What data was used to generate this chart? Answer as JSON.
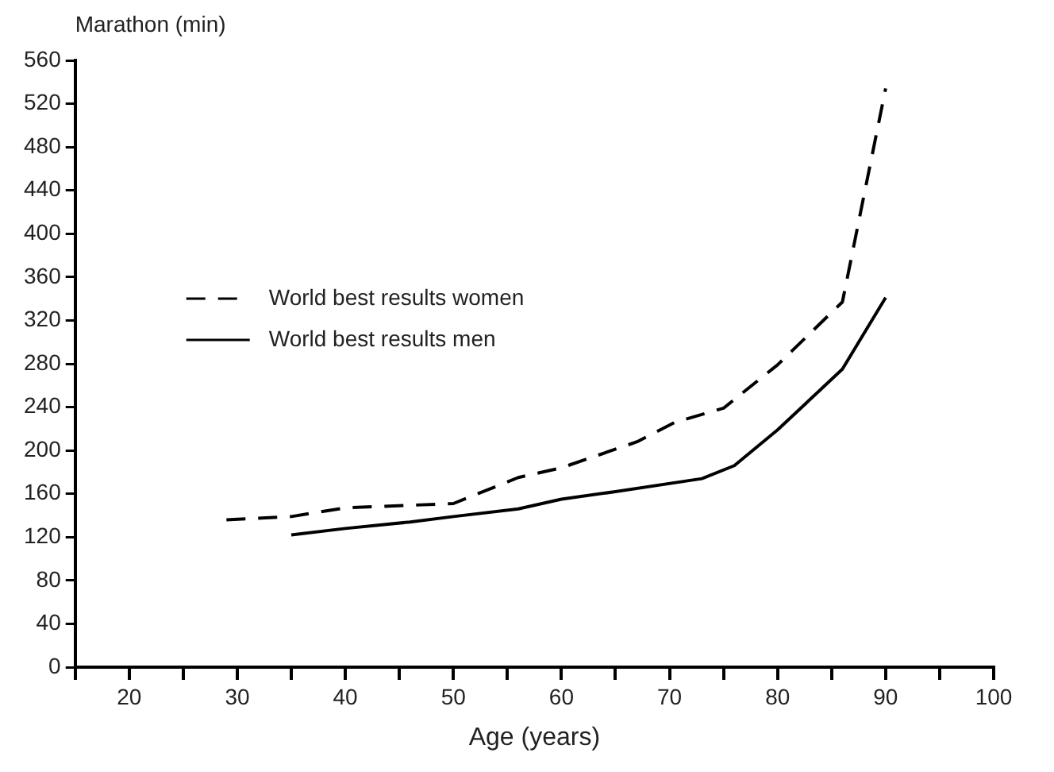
{
  "chart_data": {
    "type": "line",
    "ylabel": "Marathon (min)",
    "xlabel": "Age (years)",
    "series": [
      {
        "name": "World best results women",
        "color": "#000000",
        "line_style": "dashed",
        "x": [
          29,
          35,
          40,
          50,
          56,
          60,
          67,
          70.5,
          75,
          80,
          86,
          90
        ],
        "values": [
          136,
          139,
          147,
          151,
          175,
          184,
          208,
          226,
          239,
          279,
          337,
          534
        ]
      },
      {
        "name": "World best results men",
        "color": "#000000",
        "line_style": "solid",
        "x": [
          35,
          40,
          46,
          50,
          56,
          60,
          65,
          73,
          76,
          80,
          86,
          90
        ],
        "values": [
          122,
          128,
          134,
          139,
          146,
          155,
          162,
          174,
          186,
          219,
          275,
          341
        ]
      }
    ],
    "xlim": [
      15,
      100
    ],
    "xticks": [
      {
        "value": 15,
        "label": null
      },
      20,
      {
        "value": 25,
        "label": null
      },
      30,
      {
        "value": 35,
        "label": null
      },
      40,
      {
        "value": 45,
        "label": null
      },
      50,
      {
        "value": 55,
        "label": null
      },
      60,
      {
        "value": 65,
        "label": null
      },
      70,
      {
        "value": 75,
        "label": null
      },
      80,
      {
        "value": 85,
        "label": null
      },
      90,
      {
        "value": 95,
        "label": null
      },
      100
    ],
    "ylim": [
      0,
      560
    ],
    "yticks": [
      0,
      40,
      80,
      120,
      160,
      200,
      240,
      280,
      320,
      360,
      400,
      440,
      480,
      520,
      560
    ],
    "grid": false,
    "legend": "left",
    "marker": "none"
  }
}
